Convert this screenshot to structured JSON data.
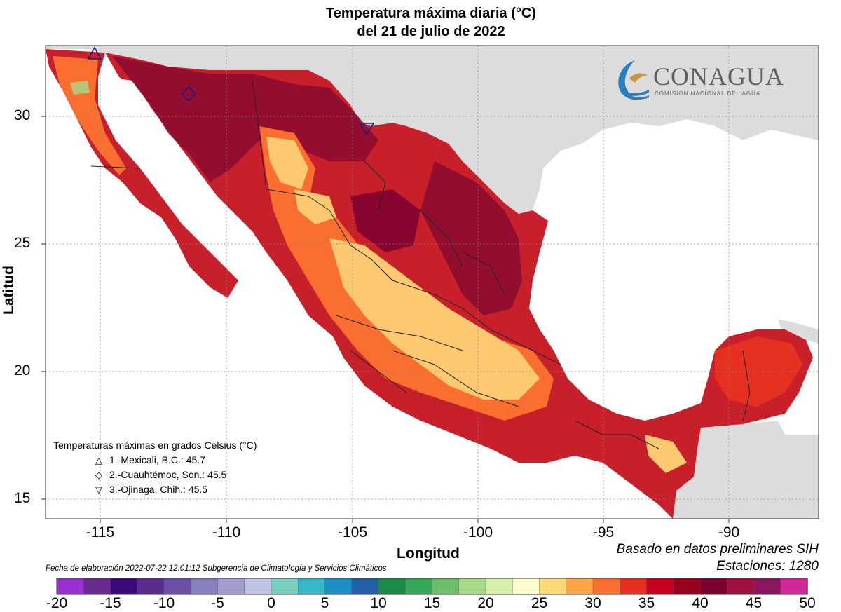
{
  "title": {
    "line1": "Temperatura máxima diaria (°C)",
    "line2": "del 21 de julio de 2022"
  },
  "axes": {
    "xlabel": "Longitud",
    "ylabel": "Latitud",
    "x_ticks": [
      "-115",
      "-110",
      "-105",
      "-100",
      "-95",
      "-90"
    ],
    "y_ticks": [
      "30",
      "25",
      "20",
      "15"
    ]
  },
  "logo": {
    "name": "CONAGUA",
    "subtitle": "COMISIÓN NACIONAL DEL AGUA"
  },
  "legend": {
    "heading": "Temperaturas máximas en grados Celsius (°C)",
    "items": [
      {
        "symbol": "△",
        "text": "1.-Mexicali, B.C.: 45.7"
      },
      {
        "symbol": "◇",
        "text": "2.-Cuauhtémoc, Son.: 45.5"
      },
      {
        "symbol": "▽",
        "text": "3.-Ojinaga, Chih.: 45.5"
      }
    ]
  },
  "notes": {
    "basado": "Basado en datos preliminares SIH",
    "estaciones": "Estaciones:  1280",
    "fecha": "Fecha de elaboración 2022-07-22 12:01:12 Subgerencia de Climatología y Servicios Climáticos"
  },
  "colorbar": {
    "labels": [
      "-20",
      "-15",
      "-10",
      "-5",
      "0",
      "5",
      "10",
      "15",
      "20",
      "25",
      "30",
      "35",
      "40",
      "45",
      "50"
    ],
    "colors": [
      "#9b30d0",
      "#6a2a90",
      "#3c0a7a",
      "#5a2d8c",
      "#6e4fa8",
      "#8680c0",
      "#a29ccf",
      "#c0c4e4",
      "#78cfc0",
      "#3ab7c9",
      "#1e8fc6",
      "#2460aa",
      "#1e8a4a",
      "#36a85a",
      "#6cbf6a",
      "#a8d888",
      "#d6eeaa",
      "#fcfccc",
      "#fcd878",
      "#fca548",
      "#fa6e30",
      "#e63020",
      "#c80020",
      "#9a0020",
      "#7a0030",
      "#a01040",
      "#8a1860",
      "#d02898"
    ]
  },
  "colors": {
    "ocean": "#ffffff",
    "land_outside": "#dcdcdc",
    "temp_hot": "#c8202a",
    "temp_very_hot": "#8a0a30",
    "temp_warm": "#fa6e30",
    "temp_mild": "#fcc870",
    "marker": "#1a1a8c"
  }
}
